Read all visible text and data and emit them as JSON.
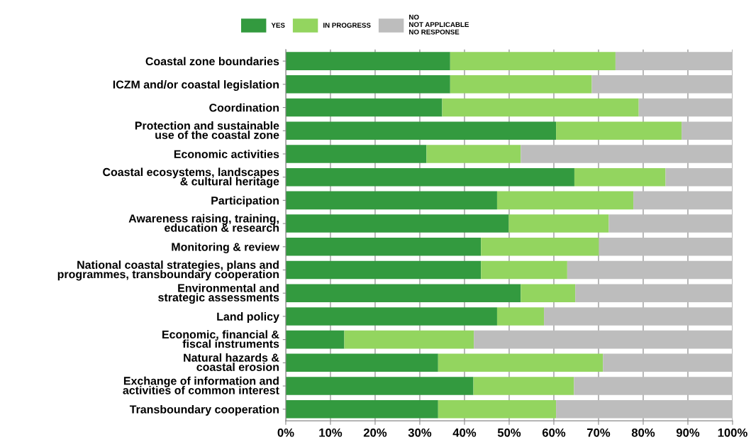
{
  "chart_data": {
    "type": "bar",
    "orientation": "horizontal",
    "stacked": true,
    "categories": [
      "Coastal zone boundaries",
      "ICZM and/or coastal legislation",
      "Coordination",
      "Protection and sustainable\nuse of the coastal zone",
      "Economic activities",
      "Coastal ecosystems, landscapes\n& cultural heritage",
      "Participation",
      "Awareness raising, training,\neducation & research",
      "Monitoring & review",
      "National coastal strategies, plans and\nprogrammes, transboundary cooperation",
      "Environmental and\nstrategic assessments",
      "Land policy",
      "Economic, financial &\nfiscal instruments",
      "Natural hazards &\ncoastal erosion",
      "Exchange of information and\nactivities of common interest",
      "Transboundary cooperation"
    ],
    "series": [
      {
        "name": "YES",
        "color": "#339a3f",
        "values": [
          36.8,
          36.8,
          35.0,
          60.5,
          31.5,
          64.6,
          47.3,
          49.9,
          43.7,
          43.7,
          52.6,
          47.3,
          13.1,
          34.1,
          42.0,
          34.1
        ]
      },
      {
        "name": "IN PROGRESS",
        "color": "#93d55f",
        "values": [
          37.0,
          31.7,
          44.0,
          28.1,
          21.1,
          20.4,
          30.5,
          22.4,
          26.4,
          19.3,
          12.2,
          10.5,
          29.0,
          36.9,
          22.5,
          26.4
        ]
      },
      {
        "name": "NO\nNOT APPLICABLE\nNO RESPONSE",
        "color": "#bdbdbd",
        "values": [
          26.2,
          31.5,
          21.0,
          11.4,
          47.4,
          15.0,
          22.2,
          27.7,
          29.9,
          37.0,
          35.2,
          42.2,
          57.9,
          29.0,
          35.5,
          39.5
        ]
      }
    ],
    "xlim": [
      0,
      100
    ],
    "xticks": [
      {
        "value": 0,
        "label": "0%"
      },
      {
        "value": 10,
        "label": "10%"
      },
      {
        "value": 20,
        "label": "20%"
      },
      {
        "value": 30,
        "label": "30%"
      },
      {
        "value": 40,
        "label": "40%"
      },
      {
        "value": 50,
        "label": "50%"
      },
      {
        "value": 60,
        "label": "60%"
      },
      {
        "value": 70,
        "label": "70%"
      },
      {
        "value": 80,
        "label": "80%"
      },
      {
        "value": 90,
        "label": "90%"
      },
      {
        "value": 100,
        "label": "100%"
      }
    ],
    "grid": "x",
    "legend": "top"
  }
}
